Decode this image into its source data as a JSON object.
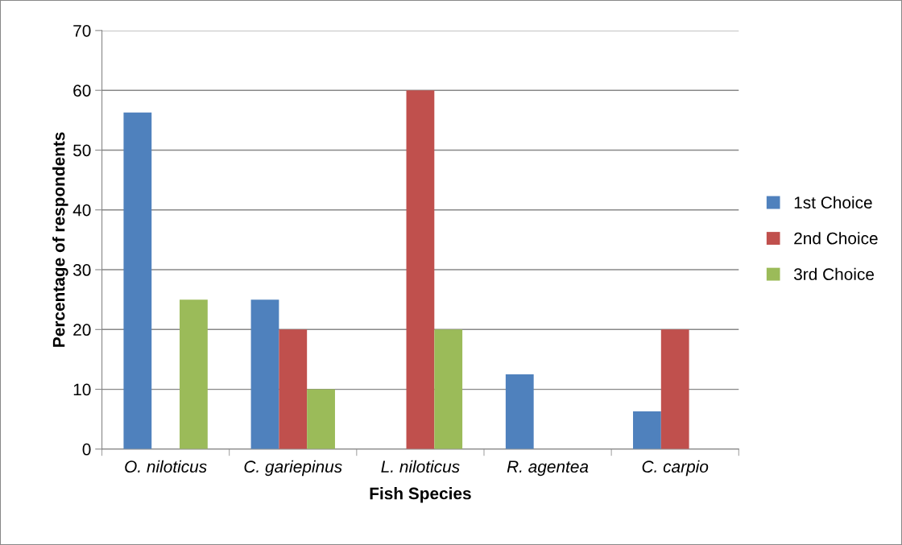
{
  "chart_data": {
    "type": "bar",
    "xlabel": "Fish Species",
    "ylabel": "Percentage of respondents",
    "categories": [
      "O. niloticus",
      "C. gariepinus",
      "L. niloticus",
      "R. agentea",
      "C. carpio"
    ],
    "series": [
      {
        "name": "1st Choice",
        "color": "#4f81bd",
        "values": [
          56.3,
          25,
          0,
          12.5,
          6.3
        ]
      },
      {
        "name": "2nd Choice",
        "color": "#c0504d",
        "values": [
          0,
          20,
          60,
          0,
          20
        ]
      },
      {
        "name": "3rd Choice",
        "color": "#9bbb59",
        "values": [
          25,
          10,
          20,
          0,
          0
        ]
      }
    ],
    "ylim": [
      0,
      70
    ],
    "yticks": [
      0,
      10,
      20,
      30,
      40,
      50,
      60,
      70
    ],
    "grid": "y",
    "legend": "right"
  }
}
